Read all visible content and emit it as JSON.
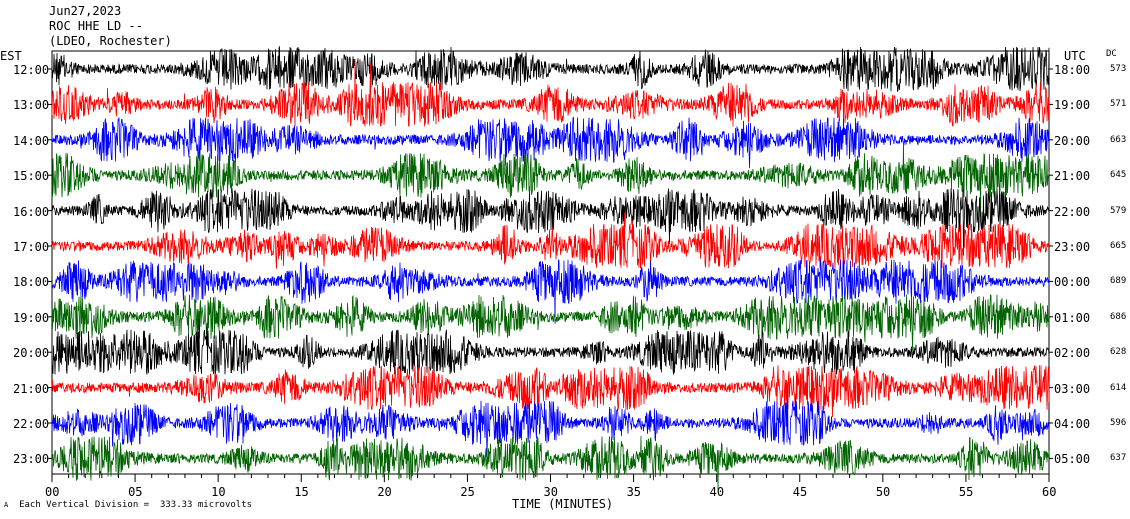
{
  "header": {
    "date": "Jun27,2023",
    "station": "ROC HHE LD --",
    "network": "(LDEO, Rochester)"
  },
  "left_axis_title": "EST",
  "right_axis_title": "UTC",
  "dc_title": "DC",
  "footer_text": "Each Vertical Division =  333.33 microvolts",
  "footer_mark": "A",
  "chart_data": {
    "type": "line",
    "title": "ROC HHE LD --",
    "xlabel": "TIME (MINUTES)",
    "xlim": [
      0,
      60
    ],
    "x_ticks": [
      "00",
      "05",
      "10",
      "15",
      "20",
      "25",
      "30",
      "35",
      "40",
      "45",
      "50",
      "55",
      "60"
    ],
    "series_colors": [
      "#000000",
      "#ff0000",
      "#0000ff",
      "#006400"
    ],
    "rows": [
      {
        "est": "12:00",
        "utc": "18:00",
        "dc": "573"
      },
      {
        "est": "13:00",
        "utc": "19:00",
        "dc": "571"
      },
      {
        "est": "14:00",
        "utc": "20:00",
        "dc": "663"
      },
      {
        "est": "15:00",
        "utc": "21:00",
        "dc": "645"
      },
      {
        "est": "16:00",
        "utc": "22:00",
        "dc": "579"
      },
      {
        "est": "17:00",
        "utc": "23:00",
        "dc": "665"
      },
      {
        "est": "18:00",
        "utc": "00:00",
        "dc": "689"
      },
      {
        "est": "19:00",
        "utc": "01:00",
        "dc": "686"
      },
      {
        "est": "20:00",
        "utc": "02:00",
        "dc": "628"
      },
      {
        "est": "21:00",
        "utc": "03:00",
        "dc": "614"
      },
      {
        "est": "22:00",
        "utc": "04:00",
        "dc": "596"
      },
      {
        "est": "23:00",
        "utc": "05:00",
        "dc": "637"
      }
    ]
  }
}
